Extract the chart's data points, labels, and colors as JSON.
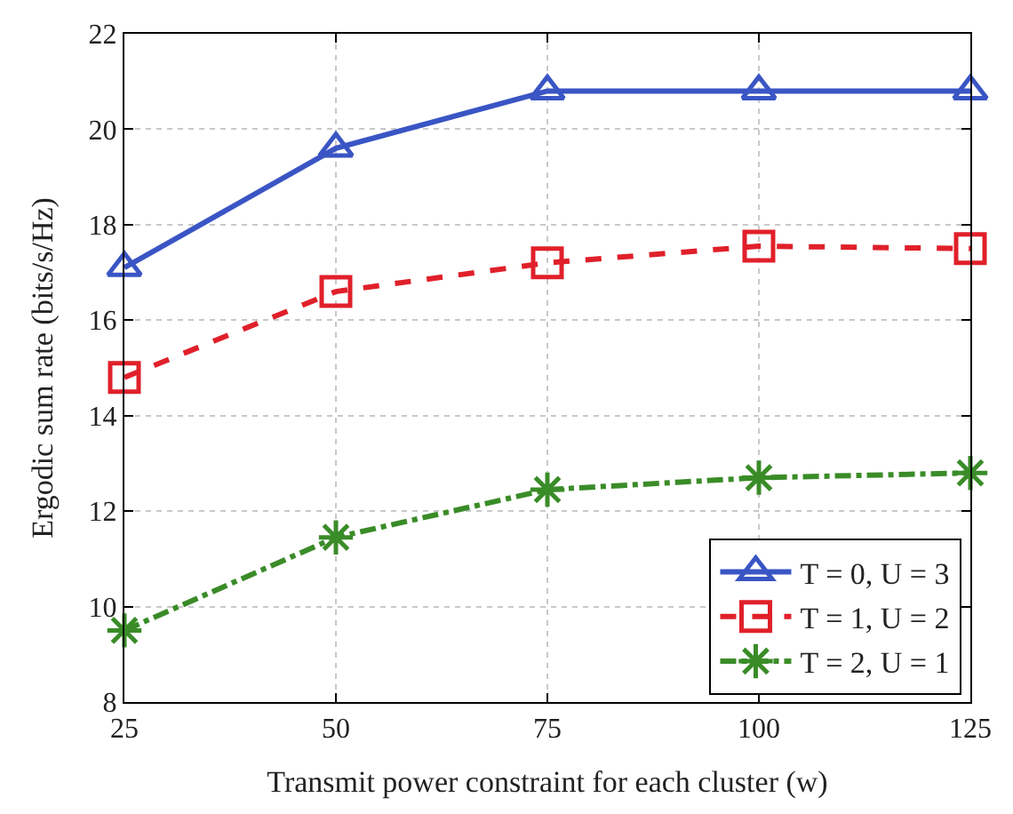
{
  "chart_data": {
    "type": "line",
    "xlabel": "Transmit power constraint for each cluster (w)",
    "ylabel": "Ergodic sum rate (bits/s/Hz)",
    "x": [
      25,
      50,
      75,
      100,
      125
    ],
    "xlim": [
      25,
      125
    ],
    "xticks": [
      25,
      50,
      75,
      100,
      125
    ],
    "ylim": [
      8,
      22
    ],
    "yticks": [
      8,
      10,
      12,
      14,
      16,
      18,
      20,
      22
    ],
    "grid": true,
    "legend": "bottom right",
    "series": [
      {
        "name": "T = 0, U = 3",
        "color": "#3a55c4",
        "marker": "triangle",
        "line_style": "solid",
        "values": [
          17.1,
          19.6,
          20.8,
          20.8,
          20.8
        ]
      },
      {
        "name": "T = 1, U = 2",
        "color": "#e0202a",
        "marker": "square",
        "line_style": "dashed",
        "values": [
          14.8,
          16.6,
          17.2,
          17.55,
          17.5
        ]
      },
      {
        "name": "T = 2, U = 1",
        "color": "#3a8c28",
        "marker": "cross",
        "line_style": "dashdot",
        "values": [
          9.5,
          11.45,
          12.45,
          12.7,
          12.8
        ]
      }
    ]
  }
}
